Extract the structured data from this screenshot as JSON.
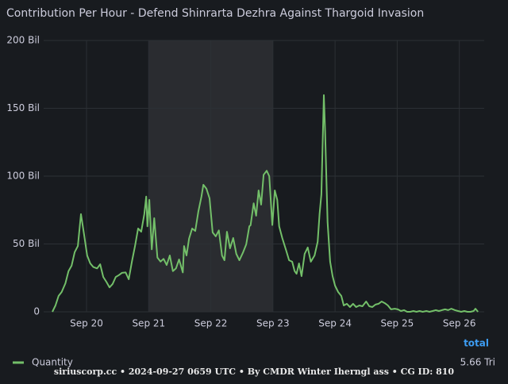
{
  "chart_data": {
    "type": "line",
    "title": "Contribution Per Hour - Defend Shinrarta Dezhra Against Thargoid Invasion",
    "x": [
      19.45,
      19.5,
      19.55,
      19.6,
      19.66,
      19.71,
      19.76,
      19.81,
      19.86,
      19.91,
      19.96,
      20.01,
      20.06,
      20.11,
      20.17,
      20.22,
      20.27,
      20.32,
      20.37,
      20.42,
      20.47,
      20.52,
      20.57,
      20.63,
      20.68,
      20.73,
      20.78,
      20.83,
      20.88,
      20.93,
      20.96,
      20.98,
      21.01,
      21.05,
      21.09,
      21.14,
      21.19,
      21.24,
      21.29,
      21.34,
      21.39,
      21.44,
      21.49,
      21.55,
      21.57,
      21.61,
      21.65,
      21.7,
      21.75,
      21.8,
      21.85,
      21.88,
      21.93,
      21.98,
      22.03,
      22.08,
      22.13,
      22.18,
      22.22,
      22.26,
      22.31,
      22.36,
      22.41,
      22.46,
      22.52,
      22.57,
      22.62,
      22.64,
      22.69,
      22.73,
      22.77,
      22.81,
      22.85,
      22.9,
      22.94,
      22.99,
      23.03,
      23.07,
      23.1,
      23.15,
      23.21,
      23.26,
      23.31,
      23.35,
      23.38,
      23.42,
      23.46,
      23.51,
      23.56,
      23.61,
      23.67,
      23.72,
      23.75,
      23.78,
      23.82,
      23.84,
      23.88,
      23.92,
      23.96,
      24.0,
      24.05,
      24.1,
      24.14,
      24.19,
      24.24,
      24.29,
      24.34,
      24.39,
      24.44,
      24.5,
      24.55,
      24.6,
      24.65,
      24.7,
      24.75,
      24.8,
      24.85,
      24.9,
      24.96,
      25.01,
      25.06,
      25.11,
      25.16,
      25.21,
      25.26,
      25.31,
      25.36,
      25.41,
      25.47,
      25.52,
      25.57,
      25.62,
      25.67,
      25.72,
      25.77,
      25.82,
      25.87,
      25.93,
      25.98,
      26.03,
      26.08,
      26.13,
      26.18,
      26.23,
      26.26,
      26.3
    ],
    "series": [
      {
        "name": "Quantity",
        "color": "#73bf69",
        "total": "5.66 Tri",
        "values": [
          0,
          4.7,
          11.7,
          14.6,
          21,
          30,
          34,
          44,
          48.5,
          72,
          57,
          41.5,
          35.7,
          33,
          32,
          35,
          25.7,
          22,
          18,
          20.5,
          25.7,
          27,
          28.7,
          29,
          24,
          37,
          48.5,
          61.4,
          59,
          72,
          85,
          63,
          82.5,
          46,
          69,
          40,
          37,
          39,
          34.5,
          41.5,
          30,
          32,
          38.6,
          29,
          48.5,
          41.5,
          54,
          61.4,
          59.6,
          74,
          85,
          93.6,
          90.7,
          83.6,
          58.5,
          55.6,
          60,
          41.5,
          38,
          59,
          46.8,
          54.4,
          42.7,
          38,
          43.9,
          49.7,
          63,
          63.8,
          80,
          70.8,
          89.5,
          79,
          101,
          104,
          100,
          64,
          89.5,
          82.5,
          63,
          54.4,
          45.6,
          38,
          36.9,
          30,
          28,
          35.7,
          26.3,
          42.7,
          47.4,
          36.9,
          41.5,
          51.5,
          72,
          86.6,
          159.7,
          133,
          66,
          37,
          26.3,
          19.3,
          14.6,
          11.7,
          4.7,
          5.9,
          3.5,
          5.9,
          3.5,
          4.7,
          4.1,
          7.6,
          4.1,
          3.5,
          5.3,
          5.9,
          7.6,
          6.4,
          4.7,
          1.8,
          2.3,
          1.8,
          0.6,
          1.2,
          0,
          0,
          0.6,
          0,
          0.6,
          0,
          0.6,
          0,
          0.6,
          1.2,
          0.6,
          1.2,
          1.8,
          1.2,
          2.3,
          1.2,
          0.6,
          0,
          0.6,
          0,
          0,
          0.6,
          2.3,
          0
        ]
      }
    ],
    "xlim": [
      19.31,
      26.4
    ],
    "xticks": [
      {
        "value": 20,
        "label": "Sep 20"
      },
      {
        "value": 21,
        "label": "Sep 21"
      },
      {
        "value": 22,
        "label": "Sep 22"
      },
      {
        "value": 23,
        "label": "Sep 23"
      },
      {
        "value": 24,
        "label": "Sep 24"
      },
      {
        "value": 25,
        "label": "Sep 25"
      },
      {
        "value": 26,
        "label": "Sep 26"
      }
    ],
    "ylim": [
      0,
      200
    ],
    "yticks": [
      0,
      {
        "value": 50,
        "label": "50 Bil"
      },
      {
        "value": 100,
        "label": "100 Bil"
      },
      {
        "value": 150,
        "label": "150 Bil"
      },
      {
        "value": 200,
        "label": "200 Bil"
      }
    ],
    "grid": true,
    "shaded_region": [
      21,
      23
    ],
    "legend_header": "total",
    "footer": "siriuscorp.cc • 2024-09-27 0659 UTC • By CMDR Winter Iherngl ass • CG ID: 810"
  }
}
